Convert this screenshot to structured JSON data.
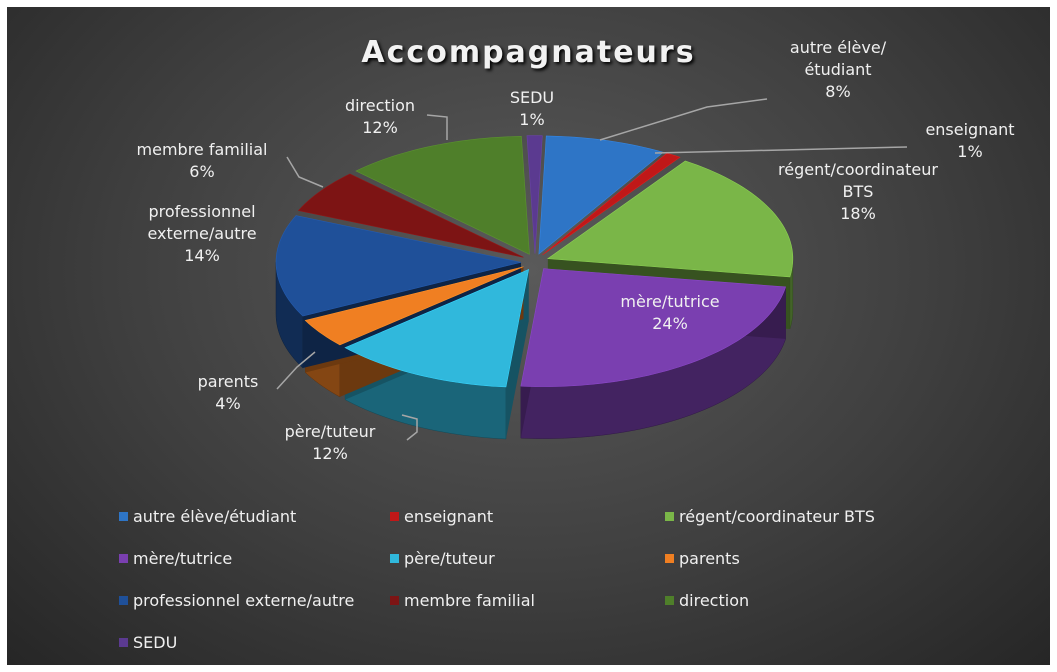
{
  "chart_data": {
    "type": "pie3d",
    "title": "Accompagnateurs",
    "categories": [
      "autre élève/étudiant",
      "enseignant",
      "régent/coordinateur BTS",
      "mère/tutrice",
      "père/tuteur",
      "parents",
      "professionnel externe/autre",
      "membre familial",
      "direction",
      "SEDU"
    ],
    "values": [
      8,
      1,
      18,
      24,
      12,
      4,
      14,
      6,
      12,
      1
    ],
    "value_labels": [
      "8%",
      "1%",
      "18%",
      "24%",
      "12%",
      "4%",
      "14%",
      "6%",
      "12%",
      "1%"
    ],
    "colors": [
      "#2e75c6",
      "#c01818",
      "#7ab648",
      "#7a3fb0",
      "#30b8dc",
      "#f07f22",
      "#1f5099",
      "#7d1414",
      "#4f7f2a",
      "#5b3a90"
    ],
    "legend": "bottom"
  }
}
